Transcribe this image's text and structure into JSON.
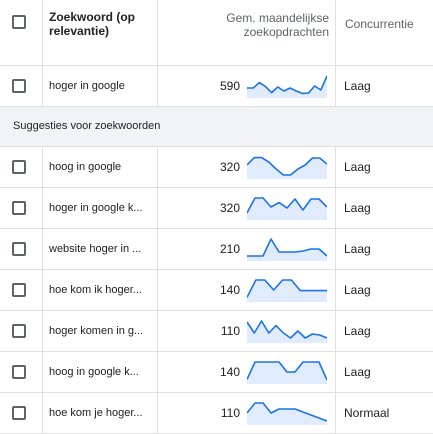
{
  "header": {
    "keyword_label": "Zoekwoord (op relevantie)",
    "volume_label": "Gem. maandelijkse zoekopdrachten",
    "competition_label": "Concurrentie"
  },
  "primary": {
    "keyword": "hoger in google",
    "volume": "590",
    "competition": "Laag",
    "trend": [
      0.35,
      0.35,
      0.62,
      0.42,
      0.12,
      0.4,
      0.2,
      0.35,
      0.2,
      0.08,
      0.1,
      0.45,
      0.25,
      0.95
    ]
  },
  "section": {
    "label": "Suggesties voor zoekwoorden"
  },
  "suggestions": [
    {
      "keyword": "hoog in google",
      "volume": "320",
      "competition": "Laag",
      "trend": [
        0.55,
        0.92,
        0.92,
        0.7,
        0.35,
        0.05,
        0.05,
        0.35,
        0.55,
        0.9,
        0.9,
        0.6
      ]
    },
    {
      "keyword": "hoger in google k...",
      "volume": "320",
      "competition": "Laag",
      "trend": [
        0.2,
        0.95,
        0.95,
        0.5,
        0.72,
        0.45,
        0.9,
        0.35,
        0.9,
        0.9,
        0.5
      ]
    },
    {
      "keyword": "website hoger in ...",
      "volume": "210",
      "competition": "Laag",
      "trend": [
        0.1,
        0.1,
        0.1,
        0.95,
        0.3,
        0.3,
        0.3,
        0.35,
        0.45,
        0.45,
        0.1
      ]
    },
    {
      "keyword": "hoe kom ik hoger...",
      "volume": "140",
      "competition": "Laag",
      "trend": [
        0.08,
        0.95,
        0.95,
        0.45,
        0.95,
        0.95,
        0.42,
        0.42,
        0.42,
        0.42
      ]
    },
    {
      "keyword": "hoger komen in g...",
      "volume": "110",
      "competition": "Laag",
      "trend": [
        0.9,
        0.35,
        0.95,
        0.35,
        0.72,
        0.35,
        0.1,
        0.45,
        0.1,
        0.3,
        0.25,
        0.1
      ]
    },
    {
      "keyword": "hoog in google k...",
      "volume": "140",
      "competition": "Laag",
      "trend": [
        0.08,
        0.95,
        0.95,
        0.95,
        0.95,
        0.45,
        0.45,
        0.95,
        0.95,
        0.95,
        0.05
      ]
    },
    {
      "keyword": "hoe kom je hoger...",
      "volume": "110",
      "competition": "Normaal",
      "trend": [
        0.45,
        0.95,
        0.95,
        0.45,
        0.65,
        0.65,
        0.65,
        0.5,
        0.35,
        0.2,
        0.05
      ]
    }
  ],
  "colors": {
    "spark_line": "#1a73e8",
    "spark_fill": "#c6dafc"
  }
}
